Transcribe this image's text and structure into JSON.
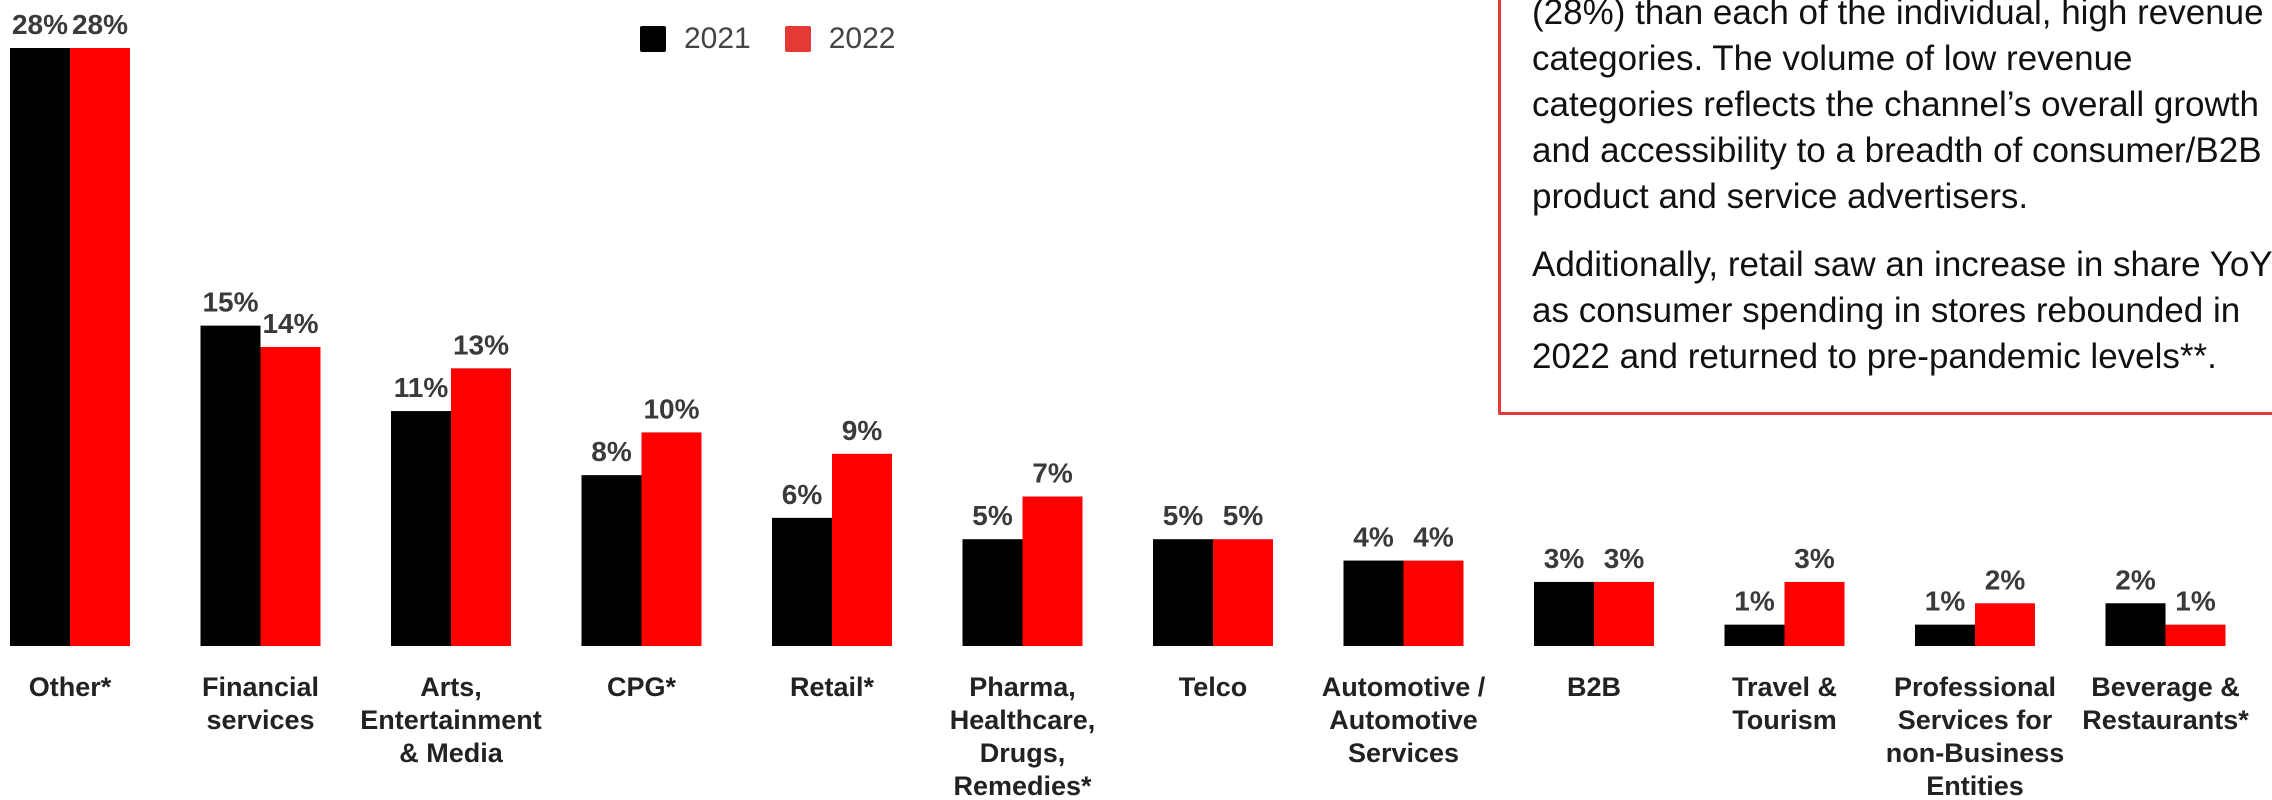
{
  "chart_data": {
    "type": "bar",
    "categories": [
      "Other*",
      "Financial services",
      "Arts, Entertainment & Media",
      "CPG*",
      "Retail*",
      "Pharma, Healthcare, Drugs, Remedies*",
      "Telco",
      "Automotive / Automotive Services",
      "B2B",
      "Travel & Tourism",
      "Professional Services for non-Business Entities",
      "Beverage & Restaurants*"
    ],
    "category_lines": [
      [
        "Other*"
      ],
      [
        "Financial",
        "services"
      ],
      [
        "Arts,",
        "Entertainment",
        "& Media"
      ],
      [
        "CPG*"
      ],
      [
        "Retail*"
      ],
      [
        "Pharma,",
        "Healthcare,",
        "Drugs,",
        "Remedies*"
      ],
      [
        "Telco"
      ],
      [
        "Automotive /",
        "Automotive",
        "Services"
      ],
      [
        "B2B"
      ],
      [
        "Travel &",
        "Tourism"
      ],
      [
        "Professional",
        "Services for",
        "non-Business",
        "Entities"
      ],
      [
        "Beverage &",
        "Restaurants*"
      ]
    ],
    "series": [
      {
        "name": "2021",
        "color": "#000000",
        "values": [
          28,
          15,
          11,
          8,
          6,
          5,
          5,
          4,
          3,
          1,
          1,
          2
        ],
        "labels": [
          "28%",
          "15%",
          "11%",
          "8%",
          "6%",
          "5%",
          "5%",
          "4%",
          "3%",
          "1%",
          "1%",
          "2%"
        ]
      },
      {
        "name": "2022",
        "color": "#ff0000",
        "values": [
          28,
          14,
          13,
          10,
          9,
          7,
          5,
          4,
          3,
          3,
          2,
          1
        ],
        "labels": [
          "28%",
          "14%",
          "13%",
          "10%",
          "9%",
          "7%",
          "5%",
          "4%",
          "3%",
          "3%",
          "2%",
          "1%"
        ]
      }
    ],
    "ylim": [
      0,
      28
    ],
    "grid": false,
    "legend_position": "top"
  },
  "legend": {
    "items": [
      {
        "label": "2021",
        "color": "#000000"
      },
      {
        "label": "2022",
        "color": "#e53935"
      }
    ]
  },
  "note": {
    "paragraph1": [
      "(28%) than each of the individual, high revenue",
      "categories. The volume of low revenue",
      "categories reflects the channel’s overall growth",
      "and accessibility to a breadth of consumer/B2B",
      "product and service advertisers."
    ],
    "paragraph2": [
      "Additionally, retail saw an increase in share YoY",
      "as consumer spending in stores rebounded in",
      "2022 and returned to pre-pandemic levels**."
    ]
  }
}
